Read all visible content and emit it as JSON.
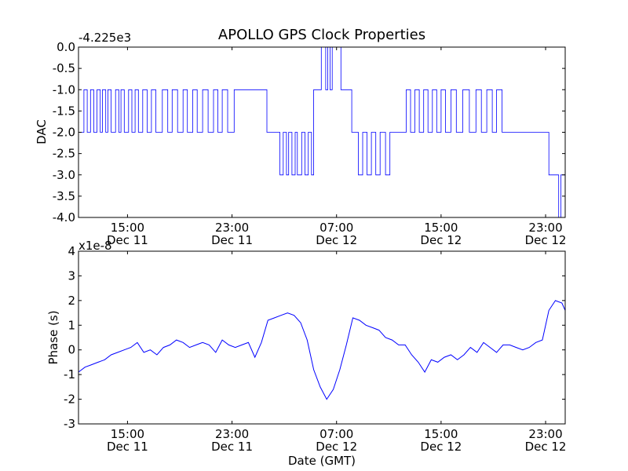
{
  "figure_title": "APOLLO GPS Clock Properties",
  "colors": {
    "series": "#0000ff",
    "axes": "#000000",
    "background": "#ffffff"
  },
  "chart_data": [
    {
      "type": "line",
      "title": "APOLLO GPS Clock Properties",
      "xlabel": "",
      "ylabel": "DAC",
      "offset_label": "-4.225e3",
      "grid": false,
      "xlim": [
        "2012-12-11 11:15",
        "2012-12-13 00:30"
      ],
      "ylim": [
        -4.0,
        0.0
      ],
      "x_ticks": [
        {
          "time": "2012-12-11 15:00",
          "label_time": "15:00",
          "label_date": "Dec 11"
        },
        {
          "time": "2012-12-11 23:00",
          "label_time": "23:00",
          "label_date": "Dec 11"
        },
        {
          "time": "2012-12-12 07:00",
          "label_time": "07:00",
          "label_date": "Dec 12"
        },
        {
          "time": "2012-12-12 15:00",
          "label_time": "15:00",
          "label_date": "Dec 12"
        },
        {
          "time": "2012-12-12 23:00",
          "label_time": "23:00",
          "label_date": "Dec 12"
        }
      ],
      "y_ticks": [
        {
          "value": 0.0,
          "label": "0.0"
        },
        {
          "value": -0.5,
          "label": "-0.5"
        },
        {
          "value": -1.0,
          "label": "-1.0"
        },
        {
          "value": -1.5,
          "label": "-1.5"
        },
        {
          "value": -2.0,
          "label": "-2.0"
        },
        {
          "value": -2.5,
          "label": "-2.5"
        },
        {
          "value": -3.0,
          "label": "-3.0"
        },
        {
          "value": -3.5,
          "label": "-3.5"
        },
        {
          "value": -4.0,
          "label": "-4.0"
        }
      ],
      "series": [
        {
          "color": "#0000ff",
          "step": true,
          "x": [
            "2012-12-11 11:15",
            "2012-12-11 11:40",
            "2012-12-11 11:55",
            "2012-12-11 12:10",
            "2012-12-11 12:25",
            "2012-12-11 12:40",
            "2012-12-11 12:55",
            "2012-12-11 13:05",
            "2012-12-11 13:20",
            "2012-12-11 13:30",
            "2012-12-11 13:45",
            "2012-12-11 14:05",
            "2012-12-11 14:20",
            "2012-12-11 14:30",
            "2012-12-11 14:45",
            "2012-12-11 15:05",
            "2012-12-11 15:20",
            "2012-12-11 15:35",
            "2012-12-11 15:50",
            "2012-12-11 16:10",
            "2012-12-11 16:30",
            "2012-12-11 16:50",
            "2012-12-11 17:10",
            "2012-12-11 17:40",
            "2012-12-11 18:05",
            "2012-12-11 18:25",
            "2012-12-11 18:50",
            "2012-12-11 19:15",
            "2012-12-11 19:35",
            "2012-12-11 20:00",
            "2012-12-11 20:20",
            "2012-12-11 20:45",
            "2012-12-11 21:10",
            "2012-12-11 21:35",
            "2012-12-11 21:55",
            "2012-12-11 22:15",
            "2012-12-11 22:40",
            "2012-12-11 23:10",
            "2012-12-11 23:40",
            "2012-12-12 00:10",
            "2012-12-12 01:40",
            "2012-12-12 02:40",
            "2012-12-12 02:55",
            "2012-12-12 03:10",
            "2012-12-12 03:20",
            "2012-12-12 03:35",
            "2012-12-12 03:50",
            "2012-12-12 04:00",
            "2012-12-12 04:20",
            "2012-12-12 04:35",
            "2012-12-12 04:50",
            "2012-12-12 05:05",
            "2012-12-12 05:15",
            "2012-12-12 05:30",
            "2012-12-12 05:50",
            "2012-12-12 06:10",
            "2012-12-12 06:20",
            "2012-12-12 06:30",
            "2012-12-12 06:40",
            "2012-12-12 07:20",
            "2012-12-12 07:40",
            "2012-12-12 08:10",
            "2012-12-12 08:40",
            "2012-12-12 09:00",
            "2012-12-12 09:20",
            "2012-12-12 09:40",
            "2012-12-12 10:00",
            "2012-12-12 10:20",
            "2012-12-12 10:45",
            "2012-12-12 11:05",
            "2012-12-12 12:20",
            "2012-12-12 12:40",
            "2012-12-12 13:00",
            "2012-12-12 13:20",
            "2012-12-12 13:40",
            "2012-12-12 14:00",
            "2012-12-12 14:20",
            "2012-12-12 14:40",
            "2012-12-12 15:00",
            "2012-12-12 15:20",
            "2012-12-12 15:45",
            "2012-12-12 16:10",
            "2012-12-12 16:40",
            "2012-12-12 17:10",
            "2012-12-12 17:40",
            "2012-12-12 18:05",
            "2012-12-12 18:30",
            "2012-12-12 18:55",
            "2012-12-12 19:15",
            "2012-12-12 19:40",
            "2012-12-12 20:10",
            "2012-12-12 23:15",
            "2012-12-13 00:00",
            "2012-12-13 00:10",
            "2012-12-13 00:30"
          ],
          "y": [
            -2,
            -1,
            -2,
            -1,
            -2,
            -1,
            -2,
            -1,
            -2,
            -1,
            -2,
            -1,
            -2,
            -1,
            -2,
            -1,
            -2,
            -1,
            -2,
            -1,
            -2,
            -1,
            -2,
            -1,
            -2,
            -1,
            -2,
            -1,
            -2,
            -1,
            -2,
            -1,
            -2,
            -1,
            -2,
            -1,
            -2,
            -1,
            -1,
            -1,
            -2,
            -3,
            -2,
            -3,
            -2,
            -3,
            -2,
            -3,
            -2,
            -3,
            -2,
            -3,
            -1,
            -1,
            0,
            -1,
            0,
            -1,
            0,
            -1,
            -1,
            -2,
            -3,
            -2,
            -3,
            -2,
            -3,
            -2,
            -3,
            -2,
            -1,
            -2,
            -1,
            -2,
            -1,
            -2,
            -1,
            -2,
            -1,
            -2,
            -1,
            -2,
            -1,
            -2,
            -1,
            -2,
            -1,
            -2,
            -1,
            -2,
            -2,
            -3,
            -4,
            -3,
            -3
          ]
        }
      ]
    },
    {
      "type": "line",
      "title": "",
      "xlabel": "Date (GMT)",
      "ylabel": "Phase (s)",
      "offset_label": "x1e-8",
      "grid": false,
      "xlim": [
        "2012-12-11 11:15",
        "2012-12-13 00:30"
      ],
      "ylim": [
        -3,
        4
      ],
      "x_ticks": [
        {
          "time": "2012-12-11 15:00",
          "label_time": "15:00",
          "label_date": "Dec 11"
        },
        {
          "time": "2012-12-11 23:00",
          "label_time": "23:00",
          "label_date": "Dec 11"
        },
        {
          "time": "2012-12-12 07:00",
          "label_time": "07:00",
          "label_date": "Dec 12"
        },
        {
          "time": "2012-12-12 15:00",
          "label_time": "15:00",
          "label_date": "Dec 12"
        },
        {
          "time": "2012-12-12 23:00",
          "label_time": "23:00",
          "label_date": "Dec 12"
        }
      ],
      "y_ticks": [
        {
          "value": 4,
          "label": "4"
        },
        {
          "value": 3,
          "label": "3"
        },
        {
          "value": 2,
          "label": "2"
        },
        {
          "value": 1,
          "label": "1"
        },
        {
          "value": 0,
          "label": "0"
        },
        {
          "value": -1,
          "label": "-1"
        },
        {
          "value": -2,
          "label": "-2"
        },
        {
          "value": -3,
          "label": "-3"
        }
      ],
      "series": [
        {
          "color": "#0000ff",
          "step": false,
          "x": [
            "2012-12-11 11:15",
            "2012-12-11 11:45",
            "2012-12-11 12:15",
            "2012-12-11 12:45",
            "2012-12-11 13:15",
            "2012-12-11 13:45",
            "2012-12-11 14:15",
            "2012-12-11 14:45",
            "2012-12-11 15:15",
            "2012-12-11 15:45",
            "2012-12-11 16:15",
            "2012-12-11 16:45",
            "2012-12-11 17:15",
            "2012-12-11 17:45",
            "2012-12-11 18:15",
            "2012-12-11 18:45",
            "2012-12-11 19:15",
            "2012-12-11 19:45",
            "2012-12-11 20:15",
            "2012-12-11 20:45",
            "2012-12-11 21:15",
            "2012-12-11 21:45",
            "2012-12-11 22:15",
            "2012-12-11 22:45",
            "2012-12-11 23:15",
            "2012-12-11 23:45",
            "2012-12-12 00:15",
            "2012-12-12 00:45",
            "2012-12-12 01:15",
            "2012-12-12 01:45",
            "2012-12-12 02:15",
            "2012-12-12 02:45",
            "2012-12-12 03:15",
            "2012-12-12 03:45",
            "2012-12-12 04:15",
            "2012-12-12 04:45",
            "2012-12-12 05:15",
            "2012-12-12 05:45",
            "2012-12-12 06:15",
            "2012-12-12 06:45",
            "2012-12-12 07:15",
            "2012-12-12 07:45",
            "2012-12-12 08:15",
            "2012-12-12 08:45",
            "2012-12-12 09:15",
            "2012-12-12 09:45",
            "2012-12-12 10:15",
            "2012-12-12 10:45",
            "2012-12-12 11:15",
            "2012-12-12 11:45",
            "2012-12-12 12:15",
            "2012-12-12 12:45",
            "2012-12-12 13:15",
            "2012-12-12 13:45",
            "2012-12-12 14:15",
            "2012-12-12 14:45",
            "2012-12-12 15:15",
            "2012-12-12 15:45",
            "2012-12-12 16:15",
            "2012-12-12 16:45",
            "2012-12-12 17:15",
            "2012-12-12 17:45",
            "2012-12-12 18:15",
            "2012-12-12 18:45",
            "2012-12-12 19:15",
            "2012-12-12 19:45",
            "2012-12-12 20:15",
            "2012-12-12 20:45",
            "2012-12-12 21:15",
            "2012-12-12 21:45",
            "2012-12-12 22:15",
            "2012-12-12 22:45",
            "2012-12-12 23:15",
            "2012-12-12 23:45",
            "2012-12-13 00:15",
            "2012-12-13 00:30"
          ],
          "y": [
            -0.9,
            -0.7,
            -0.6,
            -0.5,
            -0.4,
            -0.2,
            -0.1,
            0.0,
            0.1,
            0.3,
            -0.1,
            0.0,
            -0.2,
            0.1,
            0.2,
            0.4,
            0.3,
            0.1,
            0.2,
            0.3,
            0.2,
            -0.1,
            0.4,
            0.2,
            0.1,
            0.2,
            0.3,
            -0.3,
            0.3,
            1.2,
            1.3,
            1.4,
            1.5,
            1.4,
            1.1,
            0.4,
            -0.8,
            -1.5,
            -2.0,
            -1.6,
            -0.8,
            0.2,
            1.3,
            1.2,
            1.0,
            0.9,
            0.8,
            0.5,
            0.4,
            0.2,
            0.2,
            -0.2,
            -0.5,
            -0.9,
            -0.4,
            -0.5,
            -0.3,
            -0.2,
            -0.4,
            -0.2,
            0.1,
            -0.1,
            0.3,
            0.1,
            -0.1,
            0.2,
            0.2,
            0.1,
            0.0,
            0.1,
            0.3,
            0.4,
            1.6,
            2.0,
            1.9,
            1.6
          ]
        }
      ]
    }
  ]
}
